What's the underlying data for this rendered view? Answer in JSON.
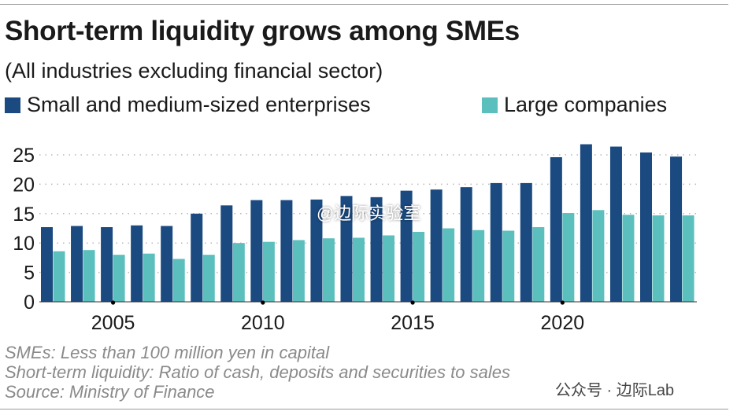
{
  "title": "Short-term liquidity grows among SMEs",
  "subtitle": "(All industries excluding financial sector)",
  "notes": [
    "SMEs: Less than 100 million yen in capital",
    "Short-term liquidity: Ratio of cash, deposits and securities to sales",
    "Source: Ministry of Finance"
  ],
  "watermarks": [
    "@边际实验室",
    "公众号 · 边际Lab"
  ],
  "chart_data": {
    "type": "bar",
    "title": "Short-term liquidity grows among SMEs",
    "subtitle": "(All industries excluding financial sector)",
    "categories": [
      2003,
      2004,
      2005,
      2006,
      2007,
      2008,
      2009,
      2010,
      2011,
      2012,
      2013,
      2014,
      2015,
      2016,
      2017,
      2018,
      2019,
      2020,
      2021,
      2022,
      2023,
      2024
    ],
    "series": [
      {
        "name": "Small and medium-sized enterprises",
        "color": "#1b4a80",
        "values": [
          12.7,
          12.9,
          12.7,
          13.0,
          12.9,
          15.0,
          16.4,
          17.3,
          17.3,
          17.4,
          18.0,
          17.8,
          18.9,
          19.1,
          19.5,
          20.2,
          20.2,
          24.6,
          26.8,
          26.4,
          25.4,
          24.7
        ]
      },
      {
        "name": "Large companies",
        "color": "#5bbfbd",
        "values": [
          8.6,
          8.8,
          8.0,
          8.2,
          7.3,
          8.0,
          10.0,
          10.2,
          10.5,
          10.8,
          10.9,
          11.3,
          11.9,
          12.5,
          12.2,
          12.1,
          12.7,
          15.1,
          15.6,
          14.8,
          14.7,
          14.7
        ]
      }
    ],
    "yticks": [
      0,
      5,
      10,
      15,
      20,
      25
    ],
    "xticks": [
      "2005",
      "2010",
      "2015",
      "2020"
    ],
    "ylim": [
      0,
      27
    ],
    "grid": true,
    "legend": "top"
  }
}
